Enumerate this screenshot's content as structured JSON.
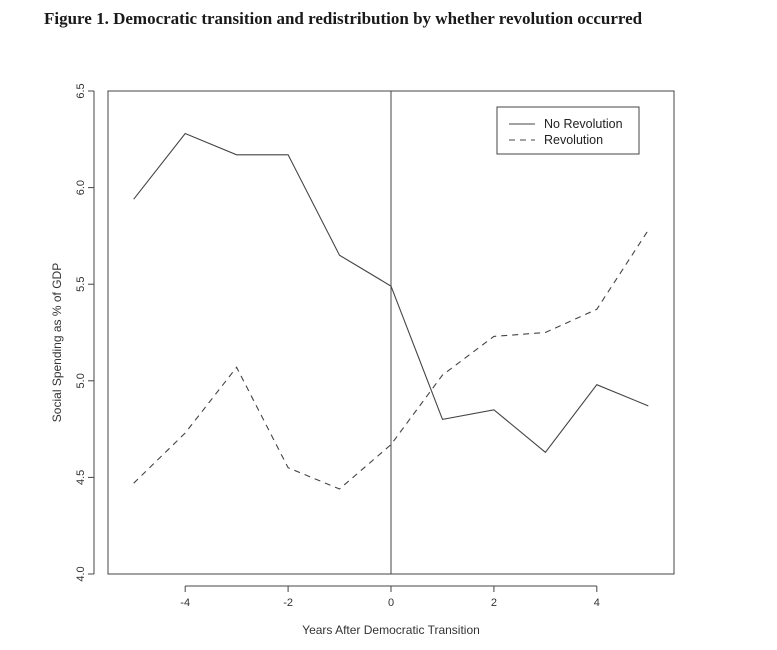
{
  "figure_title": "Figure 1. Democratic transition and redistribution by whether revolution occurred",
  "chart_data": {
    "type": "line",
    "xlabel": "Years After Democratic Transition",
    "ylabel": "Social Spending as % of GDP",
    "xlim": [
      -5.5,
      5.5
    ],
    "ylim": [
      4.0,
      6.5
    ],
    "x_ticks": [
      -4,
      -2,
      0,
      2,
      4
    ],
    "x_tick_labels": [
      "-4",
      "-2",
      "0",
      "2",
      "4"
    ],
    "y_ticks": [
      4.0,
      4.5,
      5.0,
      5.5,
      6.0,
      6.5
    ],
    "y_tick_labels": [
      "4.0",
      "4.5",
      "5.0",
      "5.5",
      "6.0",
      "6.5"
    ],
    "x": [
      -5,
      -4,
      -3,
      -2,
      -1,
      0,
      1,
      2,
      3,
      4,
      5
    ],
    "series": [
      {
        "name": "No Revolution",
        "style": "solid",
        "values": [
          5.94,
          6.28,
          6.17,
          6.17,
          5.65,
          5.49,
          4.8,
          4.85,
          4.63,
          4.98,
          4.87
        ]
      },
      {
        "name": "Revolution",
        "style": "dashed",
        "values": [
          4.47,
          4.73,
          5.07,
          4.55,
          4.44,
          4.67,
          5.03,
          5.23,
          5.25,
          5.37,
          5.78
        ]
      }
    ],
    "vertical_reference_line_x": 0,
    "grid": false,
    "legend_position": "top-right",
    "line_color": "#444444"
  }
}
